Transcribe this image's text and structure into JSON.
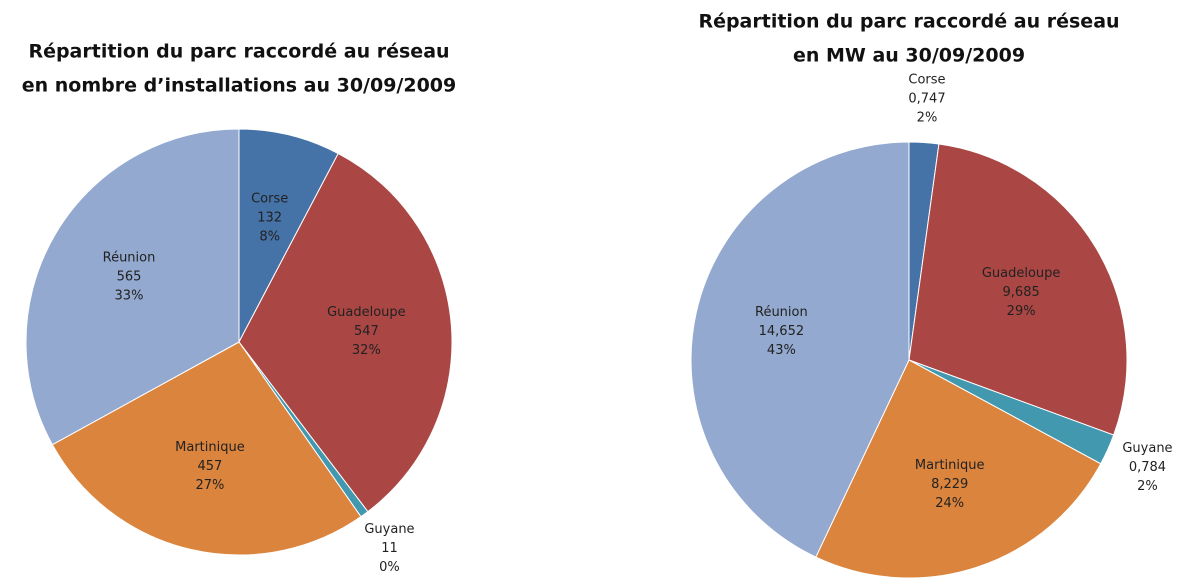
{
  "chart_data": [
    {
      "type": "pie",
      "title": [
        "Répartition du parc raccordé au réseau",
        "en nombre d’installations au 30/09/2009"
      ],
      "categories": [
        "Corse",
        "Guadeloupe",
        "Guyane",
        "Martinique",
        "Réunion"
      ],
      "values": [
        132,
        547,
        11,
        457,
        565
      ],
      "percent_labels": [
        "8%",
        "32%",
        "0%",
        "27%",
        "33%"
      ],
      "colors": [
        "#4572a7",
        "#aa4643",
        "#4198af",
        "#db843d",
        "#93a9cf"
      ]
    },
    {
      "type": "pie",
      "title": [
        "Répartition du parc raccordé au réseau",
        "en MW au 30/09/2009"
      ],
      "categories": [
        "Corse",
        "Guadeloupe",
        "Guyane",
        "Martinique",
        "Réunion"
      ],
      "values": [
        0.747,
        9.685,
        0.784,
        8.229,
        14.652
      ],
      "value_labels": [
        "0,747",
        "9,685",
        "0,784",
        "8,229",
        "14,652"
      ],
      "percent_labels": [
        "2%",
        "29%",
        "2%",
        "24%",
        "43%"
      ],
      "colors": [
        "#4572a7",
        "#aa4643",
        "#4198af",
        "#db843d",
        "#93a9cf"
      ]
    }
  ]
}
